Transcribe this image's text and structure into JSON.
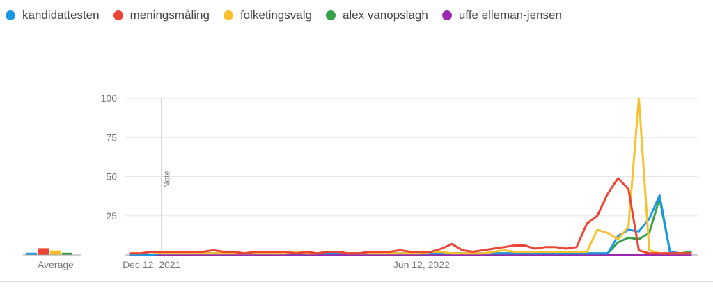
{
  "chart_data": {
    "type": "line",
    "legend_position": "top-left",
    "grid": true,
    "ylim": [
      0,
      100
    ],
    "y_ticks": [
      25,
      50,
      75,
      100
    ],
    "x_tick_labels": [
      {
        "date": "2021-12-12",
        "label": "Dec 12, 2021"
      },
      {
        "date": "2022-06-12",
        "label": "Jun 12, 2022"
      }
    ],
    "note": {
      "date": "2021-12-12",
      "label": "Note"
    },
    "average_label": "Average",
    "x": [
      "2021-11-21",
      "2021-11-28",
      "2021-12-05",
      "2021-12-12",
      "2021-12-19",
      "2021-12-26",
      "2022-01-02",
      "2022-01-09",
      "2022-01-16",
      "2022-01-23",
      "2022-01-30",
      "2022-02-06",
      "2022-02-13",
      "2022-02-20",
      "2022-02-27",
      "2022-03-06",
      "2022-03-13",
      "2022-03-20",
      "2022-03-27",
      "2022-04-03",
      "2022-04-10",
      "2022-04-17",
      "2022-04-24",
      "2022-05-01",
      "2022-05-08",
      "2022-05-15",
      "2022-05-22",
      "2022-05-29",
      "2022-06-05",
      "2022-06-12",
      "2022-06-19",
      "2022-06-26",
      "2022-07-03",
      "2022-07-10",
      "2022-07-17",
      "2022-07-24",
      "2022-07-31",
      "2022-08-07",
      "2022-08-14",
      "2022-08-21",
      "2022-08-28",
      "2022-09-04",
      "2022-09-11",
      "2022-09-18",
      "2022-09-25",
      "2022-10-02",
      "2022-10-09",
      "2022-10-16",
      "2022-10-23",
      "2022-10-30",
      "2022-11-06",
      "2022-11-13",
      "2022-11-20",
      "2022-11-27",
      "2022-12-04"
    ],
    "series": [
      {
        "name": "kandidattesten",
        "color": "#1a97e8",
        "average": 2,
        "values": [
          0,
          0,
          0,
          1,
          1,
          1,
          1,
          1,
          1,
          1,
          1,
          1,
          1,
          1,
          1,
          1,
          1,
          1,
          1,
          1,
          1,
          1,
          1,
          1,
          1,
          1,
          1,
          1,
          1,
          1,
          1,
          1,
          1,
          1,
          1,
          1,
          1,
          1,
          1,
          1,
          1,
          1,
          1,
          1,
          1,
          1,
          1,
          12,
          16,
          15,
          23,
          38,
          2,
          1,
          1
        ]
      },
      {
        "name": "meningsmåling",
        "color": "#eb4335",
        "average": 6,
        "values": [
          1,
          1,
          2,
          2,
          2,
          2,
          2,
          2,
          3,
          2,
          2,
          1,
          2,
          2,
          2,
          2,
          1,
          2,
          1,
          2,
          2,
          1,
          1,
          2,
          2,
          2,
          3,
          2,
          2,
          2,
          4,
          7,
          3,
          2,
          3,
          4,
          5,
          6,
          6,
          4,
          5,
          5,
          4,
          5,
          20,
          25,
          39,
          49,
          42,
          3,
          1,
          1,
          1,
          1,
          1
        ]
      },
      {
        "name": "folketingsvalg",
        "color": "#fbc02d",
        "average": 4,
        "values": [
          1,
          1,
          2,
          1,
          1,
          1,
          1,
          1,
          1,
          1,
          1,
          1,
          1,
          1,
          1,
          1,
          2,
          1,
          1,
          2,
          2,
          1,
          1,
          1,
          1,
          1,
          1,
          1,
          1,
          2,
          2,
          1,
          1,
          1,
          1,
          2,
          3,
          2,
          2,
          2,
          2,
          2,
          2,
          2,
          2,
          16,
          14,
          10,
          18,
          100,
          3,
          1,
          1,
          1,
          1
        ]
      },
      {
        "name": "alex vanopslagh",
        "color": "#36a048",
        "average": 2,
        "values": [
          0,
          0,
          0,
          1,
          1,
          1,
          1,
          1,
          1,
          1,
          2,
          1,
          1,
          1,
          1,
          1,
          1,
          1,
          1,
          1,
          2,
          1,
          1,
          1,
          1,
          1,
          1,
          1,
          1,
          1,
          1,
          1,
          1,
          1,
          1,
          1,
          1,
          1,
          1,
          1,
          1,
          1,
          1,
          1,
          1,
          1,
          1,
          8,
          11,
          10,
          14,
          36,
          2,
          1,
          2
        ]
      },
      {
        "name": "uffe elleman-jensen",
        "color": "#9c27b0",
        "average": 0,
        "values": [
          0,
          0,
          0,
          0,
          0,
          0,
          0,
          0,
          0,
          0,
          0,
          0,
          0,
          0,
          0,
          0,
          0,
          0,
          0,
          0,
          0,
          0,
          0,
          0,
          0,
          0,
          0,
          0,
          0,
          0,
          0,
          0,
          0,
          0,
          0,
          0,
          0,
          0,
          0,
          0,
          0,
          0,
          0,
          0,
          0,
          0,
          0,
          0,
          0,
          0,
          0,
          0,
          0,
          0,
          0
        ]
      }
    ]
  }
}
